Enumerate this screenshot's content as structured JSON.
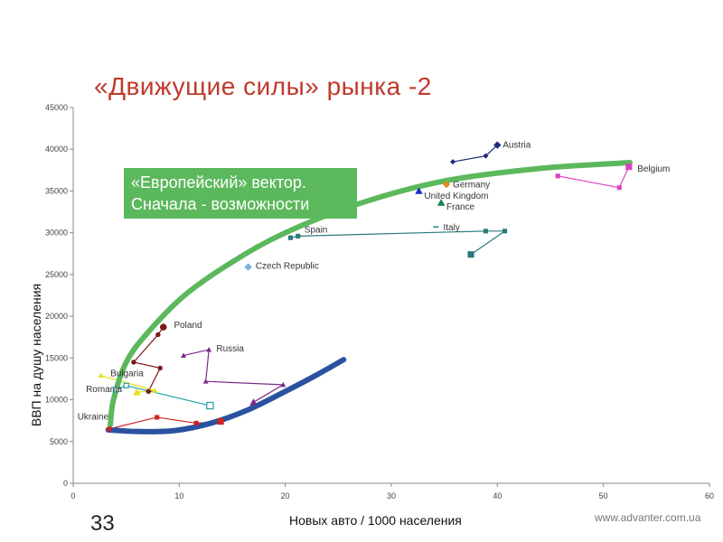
{
  "slide": {
    "title": "«Движущие силы» рынка -2",
    "number": "33",
    "footer_url": "www.advanter.com.ua",
    "callout_line1": "«Европейский» вектор.",
    "callout_line2": "Сначала - возможности"
  },
  "colors": {
    "green_curve": "#5cb85c",
    "blue_curve": "#2a52a0",
    "title": "#c0392b"
  },
  "chart_data": {
    "type": "scatter",
    "xlabel": "Новых авто / 1000 населения",
    "ylabel": "ВВП на душу населения",
    "xlim": [
      0,
      60
    ],
    "ylim": [
      0,
      45000
    ],
    "xticks": [
      0,
      10,
      20,
      30,
      40,
      50,
      60
    ],
    "yticks": [
      0,
      5000,
      10000,
      15000,
      20000,
      25000,
      30000,
      35000,
      40000,
      45000
    ],
    "grid": false,
    "series": [
      {
        "name": "Austria",
        "color": "#1f2a7a",
        "marker": "diamond",
        "points": [
          [
            35.8,
            38500
          ],
          [
            38.9,
            39200
          ],
          [
            40.0,
            40500
          ]
        ],
        "label_at": [
          40.5,
          40200
        ]
      },
      {
        "name": "Belgium",
        "color": "#e040c0",
        "marker": "square",
        "points": [
          [
            45.7,
            36800
          ],
          [
            51.5,
            35400
          ],
          [
            52.4,
            37900
          ]
        ],
        "label_at": [
          53.2,
          37300
        ]
      },
      {
        "name": "Germany",
        "color": "#e08a20",
        "marker": "diamond",
        "points": [
          [
            35.2,
            35800
          ]
        ],
        "label_at": [
          35.8,
          35400
        ]
      },
      {
        "name": "United Kingdom",
        "color": "#1a2ad0",
        "marker": "triangle",
        "points": [
          [
            32.6,
            35000
          ]
        ],
        "label_at": [
          33.1,
          34100
        ]
      },
      {
        "name": "France",
        "color": "#1a7a4a",
        "marker": "triangle",
        "points": [
          [
            34.7,
            33600
          ]
        ],
        "label_at": [
          35.2,
          32800
        ]
      },
      {
        "name": "Italy",
        "color": "#40a0a0",
        "marker": "dash",
        "points": [
          [
            34.2,
            30700
          ]
        ],
        "label_at": [
          34.9,
          30300
        ]
      },
      {
        "name": "Spain",
        "color": "#2a7a7a",
        "marker": "square",
        "points": [
          [
            20.5,
            29400
          ],
          [
            21.2,
            29600
          ],
          [
            38.9,
            30200
          ],
          [
            40.7,
            30200
          ],
          [
            37.5,
            27400
          ]
        ],
        "label_at": [
          21.8,
          30000
        ]
      },
      {
        "name": "Czech Republic",
        "color": "#7ab0e0",
        "marker": "diamond",
        "points": [
          [
            16.5,
            25900
          ]
        ],
        "label_at": [
          17.2,
          25700
        ]
      },
      {
        "name": "Poland",
        "color": "#7a1a1a",
        "marker": "circle",
        "points": [
          [
            7.1,
            11000
          ],
          [
            8.2,
            13800
          ],
          [
            5.7,
            14500
          ],
          [
            8.0,
            17800
          ],
          [
            8.5,
            18700
          ]
        ],
        "label_at": [
          9.5,
          18600
        ]
      },
      {
        "name": "Russia",
        "color": "#7a2a8a",
        "marker": "triangle",
        "points": [
          [
            10.4,
            15300
          ],
          [
            12.8,
            16000
          ],
          [
            12.5,
            12200
          ],
          [
            19.8,
            11800
          ],
          [
            17.0,
            9700
          ]
        ],
        "label_at": [
          13.5,
          15800
        ]
      },
      {
        "name": "Bulgaria",
        "color": "#e8e020",
        "marker": "triangle",
        "points": [
          [
            2.6,
            12900
          ],
          [
            7.7,
            11100
          ],
          [
            6.0,
            10900
          ]
        ],
        "label_at": [
          3.5,
          12800
        ]
      },
      {
        "name": "Romania",
        "color": "#20a0a0",
        "marker": "square-open",
        "points": [
          [
            4.0,
            11200
          ],
          [
            5.0,
            11700
          ],
          [
            12.9,
            9300
          ]
        ],
        "label_at": [
          1.2,
          10900
        ]
      },
      {
        "name": "Ukraine",
        "color": "#d02020",
        "marker": "square",
        "points": [
          [
            3.4,
            6500
          ],
          [
            7.9,
            7900
          ],
          [
            11.6,
            7200
          ],
          [
            13.9,
            7400
          ]
        ],
        "label_at": [
          0.4,
          7600
        ]
      }
    ],
    "annotation_curves": [
      {
        "name": "european",
        "color": "#5cb85c",
        "points": [
          [
            3.5,
            7000
          ],
          [
            3.8,
            10000
          ],
          [
            5,
            14500
          ],
          [
            7,
            18000
          ],
          [
            10.5,
            22500
          ],
          [
            15,
            26500
          ],
          [
            20,
            30000
          ],
          [
            27,
            33500
          ],
          [
            35,
            36200
          ],
          [
            44,
            37700
          ],
          [
            52.5,
            38400
          ]
        ]
      },
      {
        "name": "domestic",
        "color": "#2a52a0",
        "points": [
          [
            3.3,
            6400
          ],
          [
            6,
            6200
          ],
          [
            9.5,
            6300
          ],
          [
            13,
            7200
          ],
          [
            16.5,
            8800
          ],
          [
            20,
            11000
          ],
          [
            23,
            13000
          ],
          [
            25.5,
            14800
          ]
        ]
      }
    ]
  }
}
